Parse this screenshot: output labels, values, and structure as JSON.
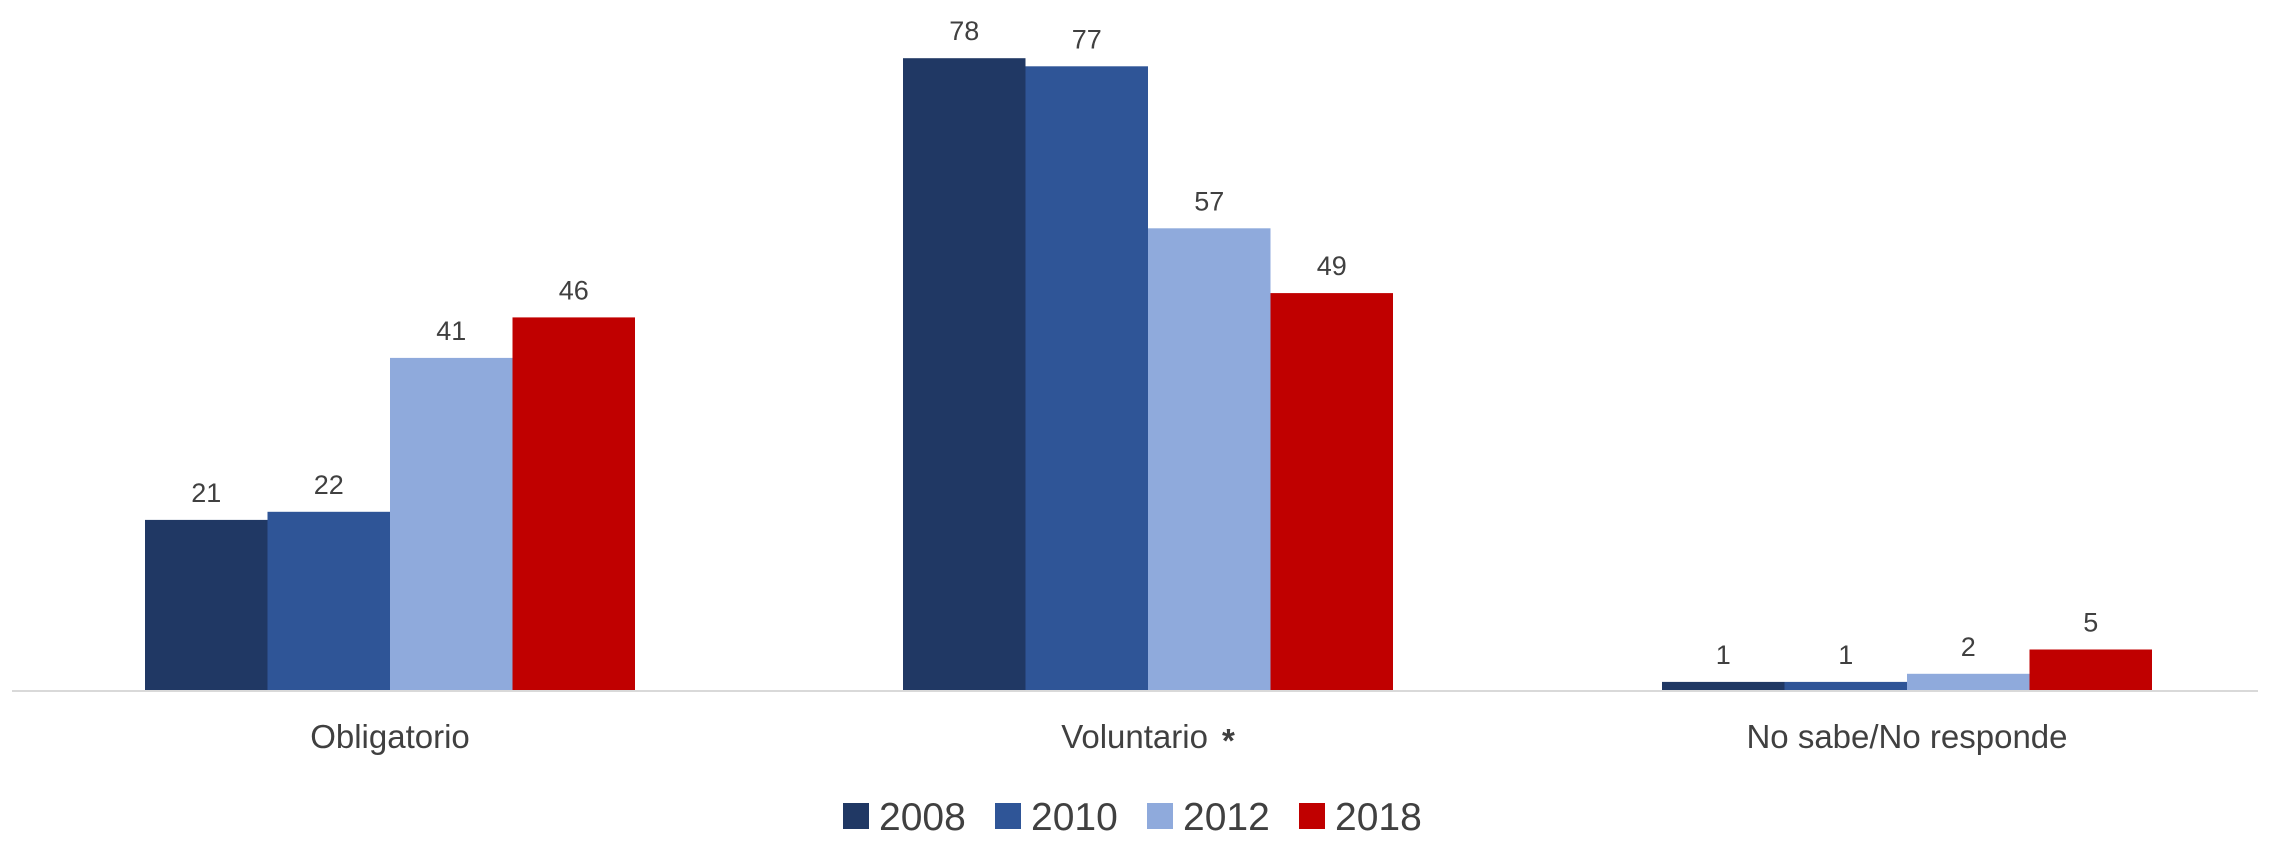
{
  "chart_data": {
    "type": "bar",
    "categories": [
      "Obligatorio",
      "Voluntario",
      "No sabe/No responde"
    ],
    "category_marks": [
      "",
      "*",
      ""
    ],
    "series": [
      {
        "name": "2008",
        "color": "#203864",
        "values": [
          21,
          78,
          1
        ]
      },
      {
        "name": "2010",
        "color": "#2F5597",
        "values": [
          22,
          77,
          1
        ]
      },
      {
        "name": "2012",
        "color": "#8FAADC",
        "values": [
          41,
          57,
          2
        ]
      },
      {
        "name": "2018",
        "color": "#C00000",
        "values": [
          46,
          49,
          5
        ]
      }
    ],
    "ylim": [
      0,
      80
    ],
    "grid": false,
    "legend_position": "bottom-center",
    "data_labels": true
  }
}
